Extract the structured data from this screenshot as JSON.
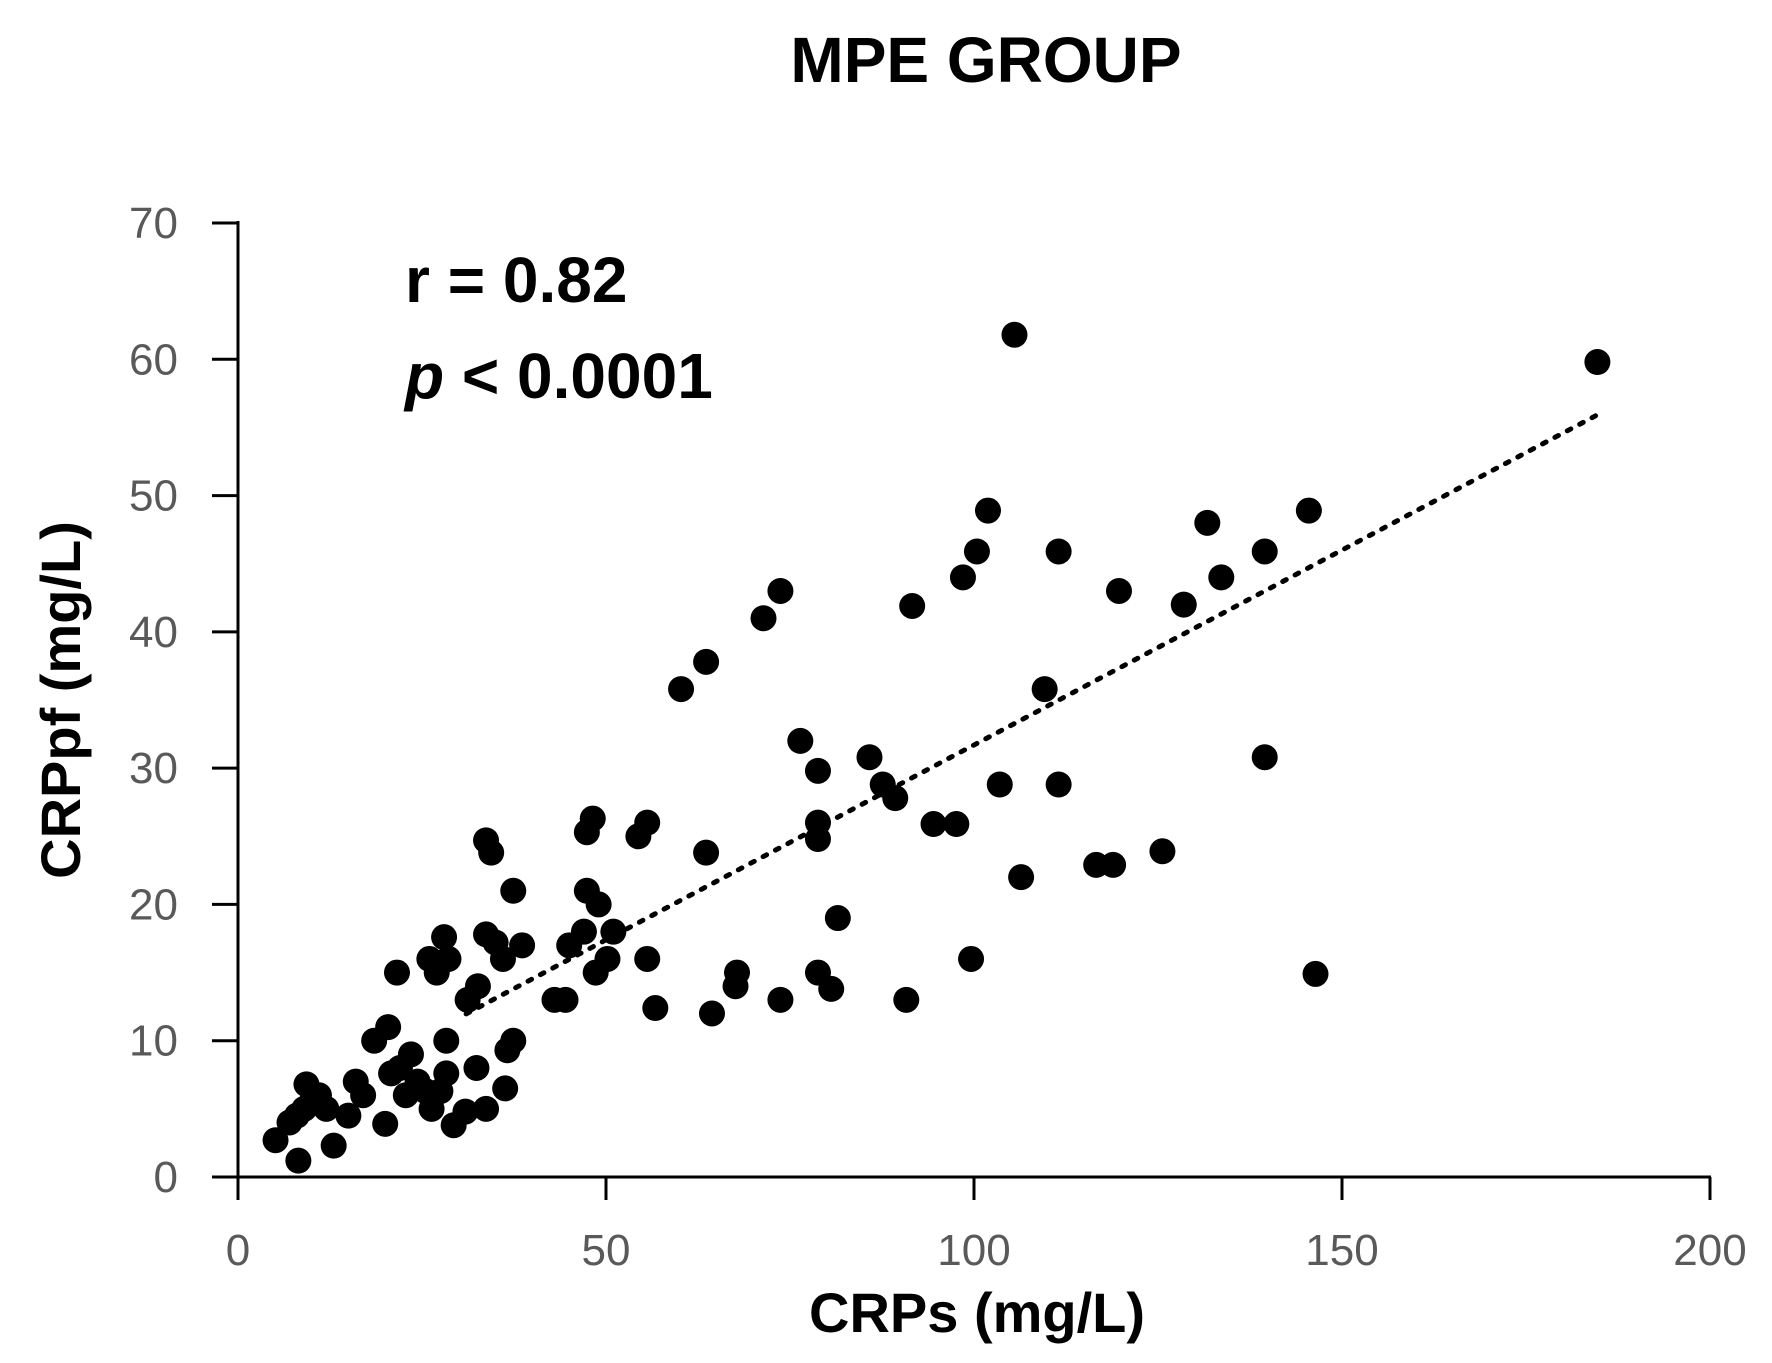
{
  "chart_data": {
    "type": "scatter",
    "title": "MPE GROUP",
    "xlabel": "CRPs (mg/L)",
    "ylabel": "CRPpf (mg/L)",
    "xlim": [
      0,
      200
    ],
    "ylim": [
      0,
      70
    ],
    "xticks": [
      "0",
      "50",
      "100",
      "150",
      "200"
    ],
    "yticks": [
      "0",
      "10",
      "20",
      "30",
      "40",
      "50",
      "60",
      "70"
    ],
    "grid": false,
    "annotation": {
      "r_text": "r = 0.82",
      "p_symbol": "p",
      "p_rest": " < 0.0001"
    },
    "trendline": {
      "style": "dotted",
      "slope": 0.286,
      "intercept": 3.1,
      "x_range": [
        31,
        185
      ]
    },
    "points": [
      [
        5.1,
        2.7
      ],
      [
        8.2,
        1.2
      ],
      [
        9.3,
        6.8
      ],
      [
        7,
        4
      ],
      [
        8,
        4.5
      ],
      [
        9,
        5
      ],
      [
        10,
        5.5
      ],
      [
        11,
        6
      ],
      [
        12,
        5
      ],
      [
        13,
        2.3
      ],
      [
        15,
        4.5
      ],
      [
        16,
        7
      ],
      [
        17,
        6
      ],
      [
        18.5,
        10
      ],
      [
        20.4,
        11
      ],
      [
        21.6,
        15
      ],
      [
        20,
        3.9
      ],
      [
        20.8,
        7.6
      ],
      [
        22,
        8
      ],
      [
        23.5,
        9
      ],
      [
        22.8,
        6
      ],
      [
        24.4,
        7
      ],
      [
        25.5,
        6.3
      ],
      [
        26.3,
        5
      ],
      [
        26,
        16
      ],
      [
        27,
        15
      ],
      [
        28,
        17.6
      ],
      [
        28.6,
        16
      ],
      [
        28.3,
        10
      ],
      [
        28.3,
        7.6
      ],
      [
        27.5,
        6.3
      ],
      [
        29.3,
        3.8
      ],
      [
        30.9,
        4.8
      ],
      [
        31.2,
        13
      ],
      [
        32.6,
        14
      ],
      [
        32.4,
        8
      ],
      [
        33.7,
        5
      ],
      [
        33.7,
        24.7
      ],
      [
        34.4,
        23.8
      ],
      [
        33.7,
        17.8
      ],
      [
        35,
        17.2
      ],
      [
        36,
        16
      ],
      [
        36.3,
        6.5
      ],
      [
        36.6,
        9.3
      ],
      [
        37.4,
        10
      ],
      [
        37.4,
        21
      ],
      [
        38.6,
        17
      ],
      [
        43,
        13
      ],
      [
        44.5,
        13
      ],
      [
        45,
        17
      ],
      [
        47,
        18
      ],
      [
        47.4,
        21
      ],
      [
        47.4,
        25.3
      ],
      [
        48.2,
        26.3
      ],
      [
        49,
        20
      ],
      [
        48.6,
        15
      ],
      [
        50.2,
        16
      ],
      [
        51,
        18
      ],
      [
        54.4,
        25
      ],
      [
        55.6,
        26
      ],
      [
        55.6,
        16
      ],
      [
        56.7,
        12.4
      ],
      [
        60.2,
        35.8
      ],
      [
        63.6,
        37.8
      ],
      [
        63.6,
        23.8
      ],
      [
        64.4,
        12
      ],
      [
        67.6,
        14
      ],
      [
        67.8,
        15
      ],
      [
        71.4,
        41
      ],
      [
        73.7,
        43
      ],
      [
        73.7,
        13
      ],
      [
        76.4,
        32
      ],
      [
        78.8,
        29.8
      ],
      [
        78.8,
        26
      ],
      [
        78.8,
        24.8
      ],
      [
        78.8,
        15
      ],
      [
        80.6,
        13.8
      ],
      [
        81.5,
        19
      ],
      [
        85.8,
        30.8
      ],
      [
        87.6,
        28.8
      ],
      [
        89.3,
        27.8
      ],
      [
        90.8,
        13
      ],
      [
        91.6,
        41.9
      ],
      [
        94.5,
        25.9
      ],
      [
        97.6,
        25.9
      ],
      [
        98.5,
        44
      ],
      [
        99.6,
        16
      ],
      [
        100.4,
        45.9
      ],
      [
        101.9,
        48.9
      ],
      [
        103.5,
        28.8
      ],
      [
        105.5,
        61.8
      ],
      [
        106.4,
        22
      ],
      [
        109.6,
        35.8
      ],
      [
        111.5,
        45.9
      ],
      [
        111.5,
        28.8
      ],
      [
        116.6,
        22.9
      ],
      [
        118.9,
        22.9
      ],
      [
        119.7,
        43
      ],
      [
        125.6,
        23.9
      ],
      [
        128.5,
        42
      ],
      [
        131.7,
        48
      ],
      [
        133.6,
        44
      ],
      [
        139.5,
        45.9
      ],
      [
        139.5,
        30.8
      ],
      [
        145.5,
        48.9
      ],
      [
        146.4,
        14.9
      ],
      [
        184.7,
        59.8
      ]
    ]
  }
}
